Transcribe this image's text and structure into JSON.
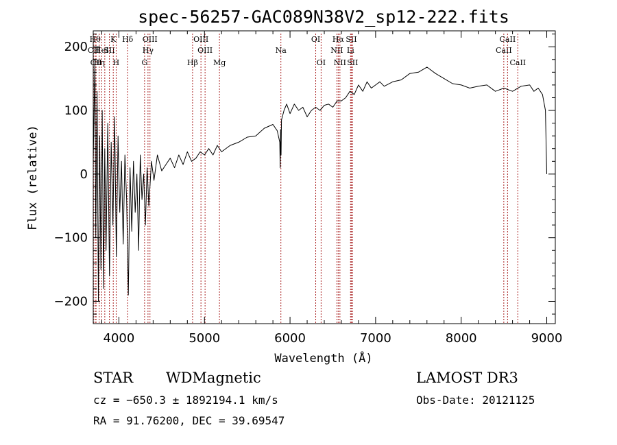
{
  "chart_data": {
    "type": "line",
    "title": "spec-56257-GAC089N38V2_sp12-222.fits",
    "xlabel": "Wavelength (Å)",
    "ylabel": "Flux (relative)",
    "xlim": [
      3700,
      9100
    ],
    "ylim": [
      -235,
      225
    ],
    "xticks": [
      4000,
      5000,
      6000,
      7000,
      8000,
      9000
    ],
    "yticks": [
      -200,
      -100,
      0,
      100,
      200
    ],
    "xtick_labels": [
      "4000",
      "5000",
      "6000",
      "7000",
      "8000",
      "9000"
    ],
    "ytick_labels": [
      "−200",
      "−100",
      "0",
      "100",
      "200"
    ],
    "line_color": "#000000",
    "marker_color": "#aa2222",
    "series": [
      {
        "name": "flux",
        "points": [
          [
            3700,
            20
          ],
          [
            3720,
            180
          ],
          [
            3730,
            -100
          ],
          [
            3745,
            130
          ],
          [
            3760,
            -200
          ],
          [
            3775,
            60
          ],
          [
            3790,
            -150
          ],
          [
            3805,
            100
          ],
          [
            3820,
            -180
          ],
          [
            3835,
            40
          ],
          [
            3850,
            -120
          ],
          [
            3870,
            80
          ],
          [
            3890,
            -160
          ],
          [
            3910,
            50
          ],
          [
            3930,
            -80
          ],
          [
            3950,
            90
          ],
          [
            3970,
            -130
          ],
          [
            3990,
            60
          ],
          [
            4010,
            -60
          ],
          [
            4030,
            20
          ],
          [
            4050,
            -110
          ],
          [
            4070,
            30
          ],
          [
            4090,
            -40
          ],
          [
            4110,
            -190
          ],
          [
            4130,
            10
          ],
          [
            4150,
            -90
          ],
          [
            4170,
            20
          ],
          [
            4190,
            -60
          ],
          [
            4210,
            0
          ],
          [
            4230,
            -120
          ],
          [
            4250,
            30
          ],
          [
            4270,
            -40
          ],
          [
            4290,
            0
          ],
          [
            4310,
            -80
          ],
          [
            4330,
            10
          ],
          [
            4350,
            -50
          ],
          [
            4380,
            20
          ],
          [
            4410,
            -10
          ],
          [
            4450,
            30
          ],
          [
            4500,
            5
          ],
          [
            4550,
            15
          ],
          [
            4600,
            25
          ],
          [
            4650,
            10
          ],
          [
            4700,
            30
          ],
          [
            4750,
            15
          ],
          [
            4800,
            35
          ],
          [
            4850,
            20
          ],
          [
            4900,
            25
          ],
          [
            4950,
            35
          ],
          [
            5000,
            30
          ],
          [
            5050,
            40
          ],
          [
            5100,
            30
          ],
          [
            5150,
            45
          ],
          [
            5200,
            35
          ],
          [
            5300,
            45
          ],
          [
            5400,
            50
          ],
          [
            5500,
            58
          ],
          [
            5600,
            60
          ],
          [
            5700,
            72
          ],
          [
            5800,
            78
          ],
          [
            5850,
            68
          ],
          [
            5880,
            50
          ],
          [
            5885,
            10
          ],
          [
            5890,
            70
          ],
          [
            5895,
            30
          ],
          [
            5900,
            85
          ],
          [
            5930,
            100
          ],
          [
            5960,
            110
          ],
          [
            6000,
            95
          ],
          [
            6050,
            110
          ],
          [
            6100,
            100
          ],
          [
            6150,
            105
          ],
          [
            6200,
            90
          ],
          [
            6250,
            100
          ],
          [
            6300,
            105
          ],
          [
            6350,
            100
          ],
          [
            6400,
            108
          ],
          [
            6450,
            110
          ],
          [
            6500,
            105
          ],
          [
            6550,
            115
          ],
          [
            6600,
            115
          ],
          [
            6650,
            120
          ],
          [
            6700,
            130
          ],
          [
            6750,
            125
          ],
          [
            6800,
            140
          ],
          [
            6850,
            130
          ],
          [
            6900,
            145
          ],
          [
            6950,
            135
          ],
          [
            7000,
            140
          ],
          [
            7050,
            145
          ],
          [
            7100,
            138
          ],
          [
            7200,
            145
          ],
          [
            7300,
            148
          ],
          [
            7400,
            158
          ],
          [
            7500,
            160
          ],
          [
            7600,
            168
          ],
          [
            7700,
            158
          ],
          [
            7800,
            150
          ],
          [
            7900,
            142
          ],
          [
            8000,
            140
          ],
          [
            8100,
            135
          ],
          [
            8200,
            138
          ],
          [
            8300,
            140
          ],
          [
            8400,
            130
          ],
          [
            8500,
            135
          ],
          [
            8600,
            130
          ],
          [
            8700,
            138
          ],
          [
            8800,
            140
          ],
          [
            8850,
            130
          ],
          [
            8900,
            135
          ],
          [
            8950,
            125
          ],
          [
            8985,
            100
          ],
          [
            9000,
            0
          ]
        ]
      }
    ],
    "spectral_lines": [
      {
        "wavelength": 3703,
        "label": "CII",
        "row": 2
      },
      {
        "wavelength": 3722,
        "label": "Hθ",
        "row": 1
      },
      {
        "wavelength": 3733,
        "label": "CII",
        "row": 3
      },
      {
        "wavelength": 3770,
        "label": "Hη",
        "row": 3
      },
      {
        "wavelength": 3798,
        "label": "HeI",
        "row": 2
      },
      {
        "wavelength": 3835,
        "label": "",
        "row": 0
      },
      {
        "wavelength": 3889,
        "label": "SII",
        "row": 2
      },
      {
        "wavelength": 3934,
        "label": "K",
        "row": 1
      },
      {
        "wavelength": 3968,
        "label": "H",
        "row": 3
      },
      {
        "wavelength": 4102,
        "label": "Hδ",
        "row": 1
      },
      {
        "wavelength": 4300,
        "label": "G",
        "row": 3
      },
      {
        "wavelength": 4340,
        "label": "Hγ",
        "row": 2
      },
      {
        "wavelength": 4363,
        "label": "OIII",
        "row": 1
      },
      {
        "wavelength": 4861,
        "label": "Hβ",
        "row": 3
      },
      {
        "wavelength": 4959,
        "label": "OIII",
        "row": 1
      },
      {
        "wavelength": 5007,
        "label": "OIII",
        "row": 2
      },
      {
        "wavelength": 5175,
        "label": "Mg",
        "row": 3
      },
      {
        "wavelength": 5893,
        "label": "Na",
        "row": 2
      },
      {
        "wavelength": 6300,
        "label": "OI",
        "row": 1
      },
      {
        "wavelength": 6363,
        "label": "OI",
        "row": 3
      },
      {
        "wavelength": 6548,
        "label": "NII",
        "row": 2
      },
      {
        "wavelength": 6563,
        "label": "Hα",
        "row": 1
      },
      {
        "wavelength": 6583,
        "label": "NII",
        "row": 3
      },
      {
        "wavelength": 6707,
        "label": "Li",
        "row": 2
      },
      {
        "wavelength": 6716,
        "label": "SII",
        "row": 1
      },
      {
        "wavelength": 6731,
        "label": "SII",
        "row": 3
      },
      {
        "wavelength": 8498,
        "label": "CaII",
        "row": 2
      },
      {
        "wavelength": 8542,
        "label": "CaII",
        "row": 1
      },
      {
        "wavelength": 8662,
        "label": "CaII",
        "row": 3
      }
    ]
  },
  "info": {
    "class": "STAR",
    "subclass": "WDMagnetic",
    "survey": "LAMOST DR3",
    "cz": "cz = −650.3 ± 1892194.1 km/s",
    "obs_date": "Obs-Date: 20121125",
    "coords": "RA =  91.76200, DEC =  39.69547"
  }
}
